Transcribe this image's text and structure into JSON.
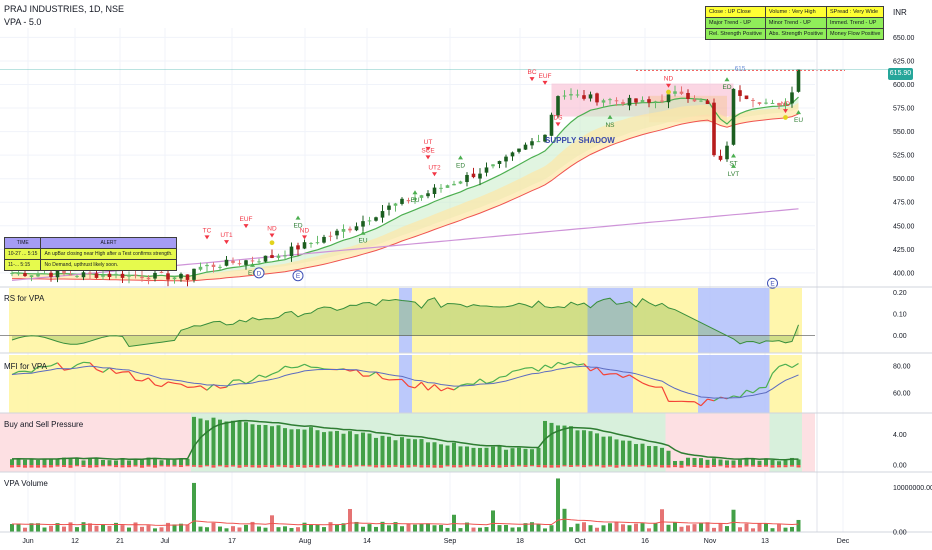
{
  "header": {
    "symbol_line": "PRAJ INDUSTRIES, 1D, NSE",
    "indicator_line": "VPA - 5.0",
    "currency": "INR"
  },
  "info_table": {
    "rows": [
      [
        "Close : UP Close",
        "Volume : Very High",
        "SPread : Very Wide"
      ],
      [
        "Major Trend - UP",
        "Minor Trend - UP",
        "Immed. Trend - UP"
      ],
      [
        "Rel. Strength Positive",
        "Abs. Strength Positive",
        "Money Flow Positive"
      ]
    ]
  },
  "alert_table": {
    "headers": [
      "TIME",
      "ALERT"
    ],
    "rows": [
      [
        "10-27 ... 5:15",
        "An upBar closing near High after a Test confirms strength."
      ],
      [
        "11-... 5:15",
        "No Demand, upthrust likely soon."
      ]
    ]
  },
  "colors": {
    "up": "#26a69a",
    "down": "#ef5350",
    "signal_green": "#4caf50",
    "signal_red": "#f23645",
    "supply_zone": "#f8bbd0",
    "bull_bg": "#fff59d",
    "bear_bg": "#b0bffa",
    "mfi_line": "#4caf50",
    "mfi_red": "#f44336",
    "pressure_green": "#43a047"
  },
  "chart_data": [
    {
      "type": "candlestick",
      "pane": "price",
      "x_ticks": [
        "Jun",
        "12",
        "21",
        "Jul",
        "17",
        "Aug",
        "14",
        "Sep",
        "18",
        "Oct",
        "16",
        "Nov",
        "13",
        "Dec"
      ],
      "ylim": [
        385,
        660
      ],
      "y_ticks": [
        400.0,
        425.0,
        450.0,
        475.0,
        500.0,
        525.0,
        550.0,
        575.0,
        600.0,
        625.0,
        650.0
      ],
      "last_price": 615.9,
      "reference_level": 615,
      "trend_lines": {
        "ema_fast_end": 582,
        "ema_mid_end": 560,
        "ema_slow_end": 548,
        "ma_long_start": 392,
        "ma_long_end": 468
      },
      "supply_zone": [
        566,
        601
      ],
      "annotations": [
        {
          "text": "TC",
          "x_month": "Jul"
        },
        {
          "text": "UT1",
          "x_month": "Jul"
        },
        {
          "text": "EUF",
          "x_month": "Jul"
        },
        {
          "text": "ND",
          "x_month": "Jul"
        },
        {
          "text": "ED",
          "x_month": "Jul"
        },
        {
          "text": "ND",
          "x_month": "Jul"
        },
        {
          "text": "EU",
          "x_month": "Jul"
        },
        {
          "text": "D",
          "x_month": "Jul"
        },
        {
          "text": "E",
          "x_month": "Jul"
        },
        {
          "text": "EU",
          "x_month": "Aug"
        },
        {
          "text": "UT",
          "x_month": "Aug"
        },
        {
          "text": "SCE",
          "x_month": "Aug"
        },
        {
          "text": "UT2",
          "x_month": "Aug"
        },
        {
          "text": "ED",
          "x_month": "Aug"
        },
        {
          "text": "EU",
          "x_month": "Aug"
        },
        {
          "text": "BC",
          "x_month": "Sep"
        },
        {
          "text": "EUF",
          "x_month": "Sep"
        },
        {
          "text": "DS",
          "x_month": "Sep"
        },
        {
          "text": "NS",
          "x_month": "Sep"
        },
        {
          "text": "ND",
          "x_month": "Oct"
        },
        {
          "text": "615",
          "x_month": "Oct"
        },
        {
          "text": "ED",
          "x_month": "Oct"
        },
        {
          "text": "ST",
          "x_month": "Oct"
        },
        {
          "text": "LVT",
          "x_month": "Oct"
        },
        {
          "text": "E",
          "x_month": "Oct"
        },
        {
          "text": "ND",
          "x_month": "Nov"
        },
        {
          "text": "EU",
          "x_month": "Nov"
        },
        {
          "text": "SUPPLY SHADOW",
          "x_month": "Sep"
        }
      ]
    },
    {
      "type": "line",
      "pane": "rs",
      "title": "RS for VPA",
      "y_ticks": [
        0.0,
        0.1,
        0.2
      ],
      "ylim": [
        -0.08,
        0.22
      ]
    },
    {
      "type": "line",
      "pane": "mfi",
      "title": "MFI for VPA",
      "y_ticks": [
        60.0,
        80.0
      ],
      "ylim": [
        45,
        88
      ]
    },
    {
      "type": "bar",
      "pane": "pressure",
      "title": "Buy and Sell Pressure",
      "y_ticks": [
        0.0,
        4.0
      ],
      "ylim": [
        -0.9,
        6.8
      ]
    },
    {
      "type": "bar",
      "pane": "volume",
      "title": "VPA Volume",
      "y_ticks": [
        0.0,
        10000000.0
      ],
      "ylim": [
        0,
        13000000
      ]
    }
  ]
}
